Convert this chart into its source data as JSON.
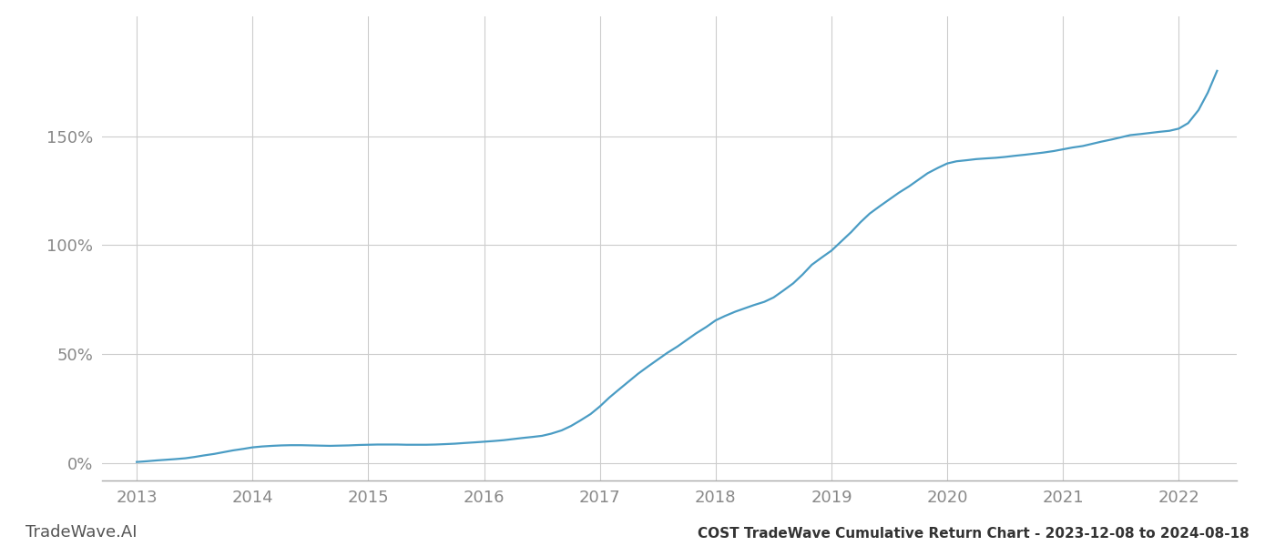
{
  "title": "COST TradeWave Cumulative Return Chart - 2023-12-08 to 2024-08-18",
  "watermark": "TradeWave.AI",
  "line_color": "#4a9cc4",
  "background_color": "#ffffff",
  "grid_color": "#cccccc",
  "x_tick_color": "#888888",
  "y_tick_color": "#888888",
  "x_values": [
    2013.0,
    2013.08,
    2013.17,
    2013.25,
    2013.33,
    2013.42,
    2013.5,
    2013.58,
    2013.67,
    2013.75,
    2013.83,
    2013.92,
    2014.0,
    2014.08,
    2014.17,
    2014.25,
    2014.33,
    2014.42,
    2014.5,
    2014.58,
    2014.67,
    2014.75,
    2014.83,
    2014.92,
    2015.0,
    2015.08,
    2015.17,
    2015.25,
    2015.33,
    2015.42,
    2015.5,
    2015.58,
    2015.67,
    2015.75,
    2015.83,
    2015.92,
    2016.0,
    2016.08,
    2016.17,
    2016.25,
    2016.33,
    2016.42,
    2016.5,
    2016.58,
    2016.67,
    2016.75,
    2016.83,
    2016.92,
    2017.0,
    2017.08,
    2017.17,
    2017.25,
    2017.33,
    2017.42,
    2017.5,
    2017.58,
    2017.67,
    2017.75,
    2017.83,
    2017.92,
    2018.0,
    2018.08,
    2018.17,
    2018.25,
    2018.33,
    2018.42,
    2018.5,
    2018.58,
    2018.67,
    2018.75,
    2018.83,
    2018.92,
    2019.0,
    2019.08,
    2019.17,
    2019.25,
    2019.33,
    2019.42,
    2019.5,
    2019.58,
    2019.67,
    2019.75,
    2019.83,
    2019.92,
    2020.0,
    2020.08,
    2020.17,
    2020.25,
    2020.33,
    2020.42,
    2020.5,
    2020.58,
    2020.67,
    2020.75,
    2020.83,
    2020.92,
    2021.0,
    2021.08,
    2021.17,
    2021.25,
    2021.33,
    2021.42,
    2021.5,
    2021.58,
    2021.67,
    2021.75,
    2021.83,
    2021.92,
    2022.0,
    2022.08,
    2022.17,
    2022.25,
    2022.33
  ],
  "y_values": [
    0.5,
    0.8,
    1.2,
    1.5,
    1.8,
    2.2,
    2.8,
    3.5,
    4.2,
    5.0,
    5.8,
    6.5,
    7.2,
    7.6,
    7.9,
    8.1,
    8.2,
    8.2,
    8.1,
    8.0,
    7.9,
    8.0,
    8.1,
    8.3,
    8.4,
    8.5,
    8.5,
    8.5,
    8.4,
    8.4,
    8.4,
    8.5,
    8.7,
    8.9,
    9.2,
    9.5,
    9.8,
    10.1,
    10.5,
    11.0,
    11.5,
    12.0,
    12.5,
    13.5,
    15.0,
    17.0,
    19.5,
    22.5,
    26.0,
    30.0,
    34.0,
    37.5,
    41.0,
    44.5,
    47.5,
    50.5,
    53.5,
    56.5,
    59.5,
    62.5,
    65.5,
    67.5,
    69.5,
    71.0,
    72.5,
    74.0,
    76.0,
    79.0,
    82.5,
    86.5,
    91.0,
    94.5,
    97.5,
    101.5,
    106.0,
    110.5,
    114.5,
    118.0,
    121.0,
    124.0,
    127.0,
    130.0,
    133.0,
    135.5,
    137.5,
    138.5,
    139.0,
    139.5,
    139.8,
    140.1,
    140.5,
    141.0,
    141.5,
    142.0,
    142.5,
    143.2,
    144.0,
    144.8,
    145.5,
    146.5,
    147.5,
    148.5,
    149.5,
    150.5,
    151.0,
    151.5,
    152.0,
    152.5,
    153.5,
    156.0,
    162.0,
    170.0,
    180.0
  ],
  "xlim": [
    2012.7,
    2022.5
  ],
  "ylim": [
    -8,
    205
  ],
  "yticks": [
    0,
    50,
    100,
    150
  ],
  "ytick_labels": [
    "0%",
    "50%",
    "100%",
    "150%"
  ],
  "xticks": [
    2013,
    2014,
    2015,
    2016,
    2017,
    2018,
    2019,
    2020,
    2021,
    2022
  ],
  "title_fontsize": 11,
  "tick_fontsize": 13,
  "watermark_fontsize": 13,
  "line_width": 1.6
}
